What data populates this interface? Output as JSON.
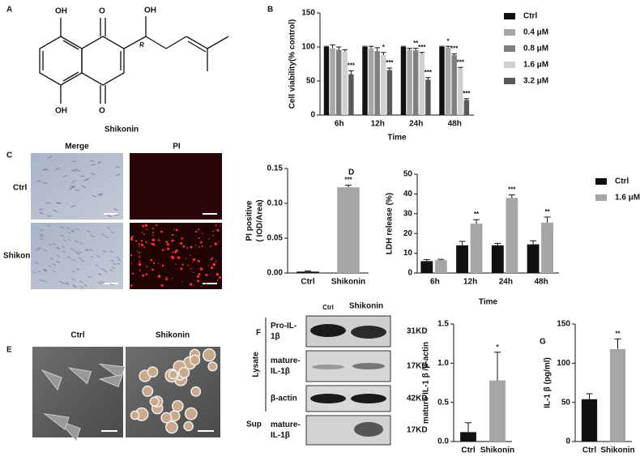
{
  "panel_labels": [
    "A",
    "B",
    "C",
    "D",
    "E",
    "F",
    "G"
  ],
  "structure": {
    "labels": [
      "OH",
      "O",
      "OH",
      "R",
      "OH",
      "O"
    ],
    "name": "Shikonin"
  },
  "images_c": {
    "columns": [
      "Merge",
      "PI"
    ],
    "rows": [
      "Ctrl",
      "Shikonin"
    ]
  },
  "images_e": {
    "columns": [
      "Ctrl",
      "Shikonin"
    ]
  },
  "blot": {
    "columns": [
      "Ctrl",
      "Shikonin"
    ],
    "groups": [
      "Lysate",
      "Sup"
    ],
    "bands": [
      {
        "label_lines": [
          "Pro-IL-",
          "1β"
        ],
        "size": "31KD"
      },
      {
        "label_lines": [
          "mature-",
          "IL-1β"
        ],
        "size": "17KD"
      },
      {
        "label_lines": [
          "β-actin"
        ],
        "size": "42KD"
      },
      {
        "label_lines": [
          "mature-",
          "IL-1β"
        ],
        "size": "17KD"
      }
    ]
  },
  "chart_data": [
    {
      "type": "bar",
      "ylabel": [
        "Cell viability(% control)"
      ],
      "xlabel": "Time",
      "legend": "right",
      "categories": [
        "6h",
        "12h",
        "24h",
        "48h"
      ],
      "ylim": [
        0,
        150
      ],
      "yticks": [
        0,
        50,
        100,
        150
      ],
      "series": [
        {
          "name": "Ctrl",
          "color": "#111111",
          "values": [
            100,
            100,
            100,
            100
          ],
          "errors": [
            1,
            1,
            1,
            1
          ],
          "significance": [
            null,
            null,
            null,
            null
          ]
        },
        {
          "name": "0.4 μM",
          "color": "#a6a6a6",
          "values": [
            98,
            98,
            96,
            99
          ],
          "errors": [
            5,
            3,
            2,
            2
          ],
          "significance": [
            null,
            null,
            null,
            "*"
          ]
        },
        {
          "name": "0.8 μM",
          "color": "#7f7f7f",
          "values": [
            96,
            94,
            95,
            88
          ],
          "errors": [
            4,
            5,
            3,
            2
          ],
          "significance": [
            null,
            null,
            "**",
            "***"
          ]
        },
        {
          "name": "1.6 μM",
          "color": "#d0d0d0",
          "values": [
            93,
            88,
            90,
            68
          ],
          "errors": [
            3,
            4,
            2,
            2
          ],
          "significance": [
            null,
            "*",
            "***",
            "***"
          ]
        },
        {
          "name": "3.2 μM",
          "color": "#595959",
          "values": [
            60,
            66,
            52,
            22
          ],
          "errors": [
            5,
            3,
            3,
            2
          ],
          "significance": [
            "***",
            "***",
            "***",
            "***"
          ]
        }
      ]
    },
    {
      "type": "bar",
      "ylabel": [
        "PI positive",
        "( IOD/Area)"
      ],
      "categories": [
        "Ctrl",
        "Shikonin"
      ],
      "colors": [
        "#111111",
        "#a6a6a6"
      ],
      "values": [
        0.002,
        0.123
      ],
      "errors": [
        0.001,
        0.003
      ],
      "significance": [
        null,
        "***"
      ],
      "ylim": [
        0,
        0.15
      ],
      "yticks": [
        {
          "value": 0,
          "label": "0.00"
        },
        {
          "value": 0.05,
          "label": "0.05"
        },
        {
          "value": 0.1,
          "label": "0.10"
        },
        {
          "value": 0.15,
          "label": "0.15"
        }
      ]
    },
    {
      "type": "bar",
      "ylabel": [
        "LDH release (%)"
      ],
      "xlabel": "Time",
      "legend": "right",
      "categories": [
        "6h",
        "12h",
        "24h",
        "48h"
      ],
      "ylim": [
        0,
        50
      ],
      "yticks": [
        0,
        10,
        20,
        30,
        40,
        50
      ],
      "series": [
        {
          "name": "Ctrl",
          "color": "#111111",
          "values": [
            6,
            14,
            14,
            14.5
          ],
          "errors": [
            0.8,
            2,
            1,
            1.8
          ],
          "significance": [
            null,
            null,
            null,
            null
          ]
        },
        {
          "name": "1.6 μM",
          "color": "#a6a6a6",
          "values": [
            6.5,
            25,
            38,
            25.5
          ],
          "errors": [
            0.4,
            2,
            1.5,
            2.8
          ],
          "significance": [
            null,
            "**",
            "***",
            "**"
          ]
        }
      ]
    },
    {
      "type": "bar",
      "ylabel": [
        "mature IL-1 β /β-actin"
      ],
      "categories": [
        "Ctrl",
        "Shikonin"
      ],
      "colors": [
        "#111111",
        "#a6a6a6"
      ],
      "values": [
        0.12,
        0.78
      ],
      "errors": [
        0.12,
        0.36
      ],
      "significance": [
        null,
        "*"
      ],
      "ylim": [
        0,
        1.5
      ],
      "yticks": [
        {
          "value": 0,
          "label": "0.0"
        },
        {
          "value": 0.5,
          "label": "0.5"
        },
        {
          "value": 1,
          "label": "1.0"
        },
        {
          "value": 1.5,
          "label": "1.5"
        }
      ]
    },
    {
      "type": "bar",
      "ylabel": [
        "IL-1 β (pg/ml)"
      ],
      "categories": [
        "Ctrl",
        "Shikonin"
      ],
      "colors": [
        "#111111",
        "#a6a6a6"
      ],
      "values": [
        54,
        118
      ],
      "errors": [
        7,
        13
      ],
      "significance": [
        null,
        "**"
      ],
      "ylim": [
        0,
        150
      ],
      "yticks": [
        0,
        50,
        100,
        150
      ]
    }
  ]
}
